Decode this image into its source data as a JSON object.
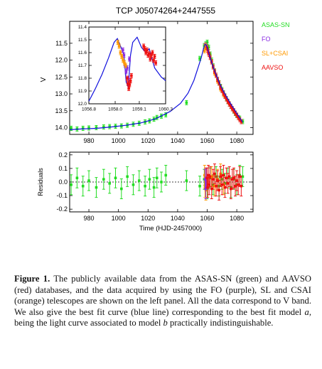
{
  "figure": {
    "title": "TCP J05074264+2447555",
    "legend": [
      {
        "label": "ASAS-SN",
        "color": "#22dd22"
      },
      {
        "label": "FO",
        "color": "#8a2be2"
      },
      {
        "label": "SL+CSAI",
        "color": "#ff9900"
      },
      {
        "label": "AAVSO",
        "color": "#ee1111"
      }
    ],
    "top_ylabel": "V",
    "bottom_ylabel": "Residuals",
    "xlabel": "Time (HJD-2457000)"
  },
  "chart_data": [
    {
      "type": "scatter",
      "panel": "light-curve",
      "title": "TCP J05074264+2447555",
      "xlabel": "",
      "ylabel": "V",
      "xlim": [
        967,
        1091
      ],
      "ylim": [
        14.2,
        10.85
      ],
      "y_inverted": true,
      "xticks": [
        "980",
        "1000",
        "1020",
        "1040",
        "1060",
        "1080"
      ],
      "xtick_values": [
        980,
        1000,
        1020,
        1040,
        1060,
        1080
      ],
      "yticks": [
        "11.5",
        "12.0",
        "12.5",
        "13.0",
        "13.5",
        "14.0"
      ],
      "ytick_values": [
        11.5,
        12.0,
        12.5,
        13.0,
        13.5,
        14.0
      ],
      "series": [
        {
          "name": "ASAS-SN",
          "color": "#22dd22",
          "x": [
            968,
            972,
            976,
            980,
            985,
            990,
            994,
            998,
            1002,
            1006,
            1010,
            1014,
            1018,
            1021,
            1024,
            1026,
            1029,
            1032,
            1046,
            1055,
            1058,
            1059,
            1060,
            1061,
            1062,
            1063,
            1064,
            1065,
            1066,
            1067,
            1068,
            1069,
            1070,
            1071,
            1072,
            1073,
            1074,
            1075,
            1076,
            1077,
            1078,
            1079,
            1080,
            1082,
            1084
          ],
          "y": [
            14.02,
            14.04,
            14.02,
            14.01,
            14.0,
            13.98,
            13.97,
            13.96,
            13.95,
            13.93,
            13.9,
            13.87,
            13.83,
            13.8,
            13.75,
            13.7,
            13.66,
            13.62,
            13.26,
            11.95,
            11.57,
            11.52,
            11.47,
            11.62,
            11.82,
            12.0,
            12.17,
            12.32,
            12.45,
            12.57,
            12.67,
            12.78,
            12.87,
            12.97,
            13.06,
            13.14,
            13.22,
            13.3,
            13.37,
            13.44,
            13.51,
            13.58,
            13.64,
            13.72,
            13.82
          ]
        },
        {
          "name": "FO",
          "color": "#8a2be2",
          "x": [
            1058.6,
            1059.0,
            1059.4
          ],
          "y": [
            11.58,
            11.55,
            11.62
          ]
        },
        {
          "name": "SL+CSAI",
          "color": "#ff9900",
          "x": [
            1058.2,
            1058.5,
            1058.8,
            1059.1,
            1063,
            1065,
            1067,
            1069,
            1071
          ],
          "y": [
            11.72,
            11.6,
            11.56,
            11.62,
            12.05,
            12.38,
            12.62,
            12.85,
            13.02
          ]
        },
        {
          "name": "AAVSO",
          "color": "#ee1111",
          "x": [
            1059.8,
            1060.3,
            1060.8,
            1061.3,
            1062,
            1063,
            1064,
            1065,
            1066,
            1067,
            1068,
            1069,
            1070,
            1071,
            1072,
            1073,
            1074,
            1075,
            1076,
            1077,
            1078,
            1079,
            1080,
            1081,
            1082,
            1083
          ],
          "y": [
            11.62,
            11.7,
            11.78,
            11.83,
            11.92,
            12.05,
            12.2,
            12.33,
            12.45,
            12.57,
            12.68,
            12.8,
            12.9,
            12.98,
            13.07,
            13.15,
            13.23,
            13.3,
            13.37,
            13.44,
            13.5,
            13.57,
            13.63,
            13.7,
            13.76,
            13.82
          ]
        },
        {
          "name": "best fit",
          "color": "#1010dd",
          "x": [
            967,
            975,
            985,
            995,
            1005,
            1015,
            1025,
            1035,
            1042,
            1047,
            1051,
            1054,
            1056,
            1057.5,
            1058.5,
            1059.3,
            1060,
            1061,
            1062,
            1064,
            1066,
            1068,
            1070,
            1073,
            1076,
            1080,
            1084
          ],
          "y": [
            14.06,
            14.04,
            14.02,
            13.98,
            13.93,
            13.86,
            13.74,
            13.52,
            13.28,
            12.98,
            12.6,
            12.2,
            11.92,
            11.66,
            11.53,
            11.55,
            11.62,
            11.78,
            11.93,
            12.2,
            12.43,
            12.65,
            12.84,
            13.08,
            13.3,
            13.58,
            13.84
          ]
        }
      ]
    },
    {
      "type": "line",
      "panel": "inset",
      "xlim": [
        1056.8,
        1060.3
      ],
      "ylim": [
        12.0,
        11.4
      ],
      "y_inverted": true,
      "xticks": [
        "1056.8",
        "1058.0",
        "1059.1",
        "1060.3"
      ],
      "xtick_values": [
        1056.8,
        1058.0,
        1059.1,
        1060.3
      ],
      "yticks": [
        "11.4",
        "11.5",
        "11.6",
        "11.7",
        "11.8",
        "11.9",
        "12.0"
      ],
      "ytick_values": [
        11.4,
        11.5,
        11.6,
        11.7,
        11.8,
        11.9,
        12.0
      ],
      "series": [
        {
          "name": "best fit",
          "color": "#1010dd",
          "x": [
            1056.8,
            1057.1,
            1057.4,
            1057.7,
            1057.95,
            1058.1,
            1058.2,
            1058.4,
            1058.5,
            1058.6,
            1058.7,
            1058.8,
            1059.0,
            1059.2,
            1059.4,
            1059.55,
            1059.8,
            1060.1,
            1060.3
          ],
          "y": [
            11.98,
            11.88,
            11.77,
            11.64,
            11.52,
            11.49,
            11.53,
            11.62,
            11.83,
            11.87,
            11.62,
            11.52,
            11.48,
            11.56,
            11.6,
            11.57,
            11.72,
            11.79,
            11.82
          ]
        },
        {
          "name": "FO",
          "color": "#8a2be2",
          "x": [
            1058.35,
            1058.4,
            1058.45,
            1058.5,
            1058.55,
            1058.6,
            1058.65
          ],
          "y": [
            11.58,
            11.62,
            11.7,
            11.75,
            11.72,
            11.8,
            11.65
          ]
        },
        {
          "name": "SL+CSAI",
          "color": "#ff9900",
          "x": [
            1058.12,
            1058.18,
            1058.24,
            1058.3,
            1058.36,
            1058.42,
            1058.48
          ],
          "y": [
            11.52,
            11.55,
            11.6,
            11.63,
            11.66,
            11.68,
            11.7
          ]
        },
        {
          "name": "AAVSO",
          "color": "#ee1111",
          "x": [
            1058.55,
            1058.58,
            1058.62,
            1058.66,
            1058.7,
            1058.74,
            1059.3,
            1059.35,
            1059.4,
            1059.45,
            1059.5,
            1059.55,
            1059.6,
            1059.65,
            1059.7,
            1059.75,
            1059.8,
            1059.85
          ],
          "y": [
            11.8,
            11.84,
            11.88,
            11.85,
            11.82,
            11.78,
            11.55,
            11.57,
            11.6,
            11.58,
            11.62,
            11.61,
            11.65,
            11.62,
            11.6,
            11.66,
            11.63,
            11.68
          ]
        }
      ]
    },
    {
      "type": "scatter",
      "panel": "residuals",
      "xlabel": "Time (HJD-2457000)",
      "ylabel": "Residuals",
      "xlim": [
        967,
        1091
      ],
      "ylim": [
        -0.22,
        0.22
      ],
      "xticks": [
        "980",
        "1000",
        "1020",
        "1040",
        "1060",
        "1080"
      ],
      "xtick_values": [
        980,
        1000,
        1020,
        1040,
        1060,
        1080
      ],
      "yticks": [
        "0.2",
        "0.1",
        "0.0",
        "-0.1",
        "-0.2"
      ],
      "ytick_values": [
        0.2,
        0.1,
        0.0,
        -0.1,
        -0.2
      ],
      "series": [
        {
          "name": "ASAS-SN",
          "color": "#22dd22",
          "x": [
            968,
            972,
            976,
            980,
            985,
            990,
            994,
            998,
            1002,
            1006,
            1010,
            1014,
            1018,
            1021,
            1024,
            1026,
            1029,
            1032,
            1046,
            1055,
            1058,
            1060,
            1062,
            1064,
            1066,
            1068,
            1070,
            1072,
            1074,
            1076,
            1078,
            1080,
            1082,
            1084
          ],
          "y": [
            -0.02,
            0.03,
            -0.03,
            0.01,
            -0.04,
            0.02,
            -0.01,
            0.03,
            -0.05,
            0.04,
            -0.02,
            0.01,
            -0.03,
            0.02,
            -0.04,
            0.03,
            0.0,
            0.05,
            0.01,
            -0.03,
            0.02,
            -0.05,
            0.03,
            -0.02,
            0.04,
            -0.03,
            0.02,
            -0.01,
            0.03,
            -0.04,
            0.02,
            -0.02,
            0.05,
            0.04
          ]
        },
        {
          "name": "SL+CSAI",
          "color": "#ff9900",
          "x": [
            1058.2,
            1058.5,
            1058.8,
            1059.1,
            1063,
            1065,
            1067,
            1069,
            1071
          ],
          "y": [
            0.05,
            -0.04,
            0.03,
            -0.06,
            0.04,
            -0.03,
            0.02,
            0.06,
            -0.02
          ]
        },
        {
          "name": "FO",
          "color": "#8a2be2",
          "x": [
            1058.6,
            1059.0,
            1059.4
          ],
          "y": [
            0.02,
            -0.05,
            0.03
          ]
        },
        {
          "name": "AAVSO",
          "color": "#ee1111",
          "x": [
            1059.8,
            1060.3,
            1060.8,
            1061.3,
            1062,
            1063,
            1064,
            1065,
            1066,
            1067,
            1068,
            1069,
            1070,
            1071,
            1072,
            1073,
            1074,
            1075,
            1076,
            1077,
            1078,
            1079,
            1080,
            1081,
            1082,
            1083
          ],
          "y": [
            0.03,
            -0.04,
            0.05,
            -0.02,
            0.04,
            -0.05,
            0.02,
            0.06,
            -0.03,
            0.01,
            -0.06,
            0.04,
            -0.02,
            0.05,
            -0.04,
            0.03,
            -0.01,
            0.04,
            -0.05,
            0.02,
            0.03,
            -0.03,
            0.01,
            -0.02,
            0.04,
            -0.03
          ]
        }
      ]
    }
  ],
  "caption": {
    "label": "Figure 1.",
    "text_1": " The publicly available data from the ASAS-SN (green) and AAVSO (red) databases, and the data acquired by using the FO (purple), SL and CSAI (orange) telescopes are shown on the left panel. All the data correspond to V band. We also give the best fit curve (blue line) corresponding to the best fit model ",
    "model_a": "a",
    "text_2": ", being the light curve associated to model ",
    "model_b": "b",
    "text_3": " practically indistinguishable."
  }
}
